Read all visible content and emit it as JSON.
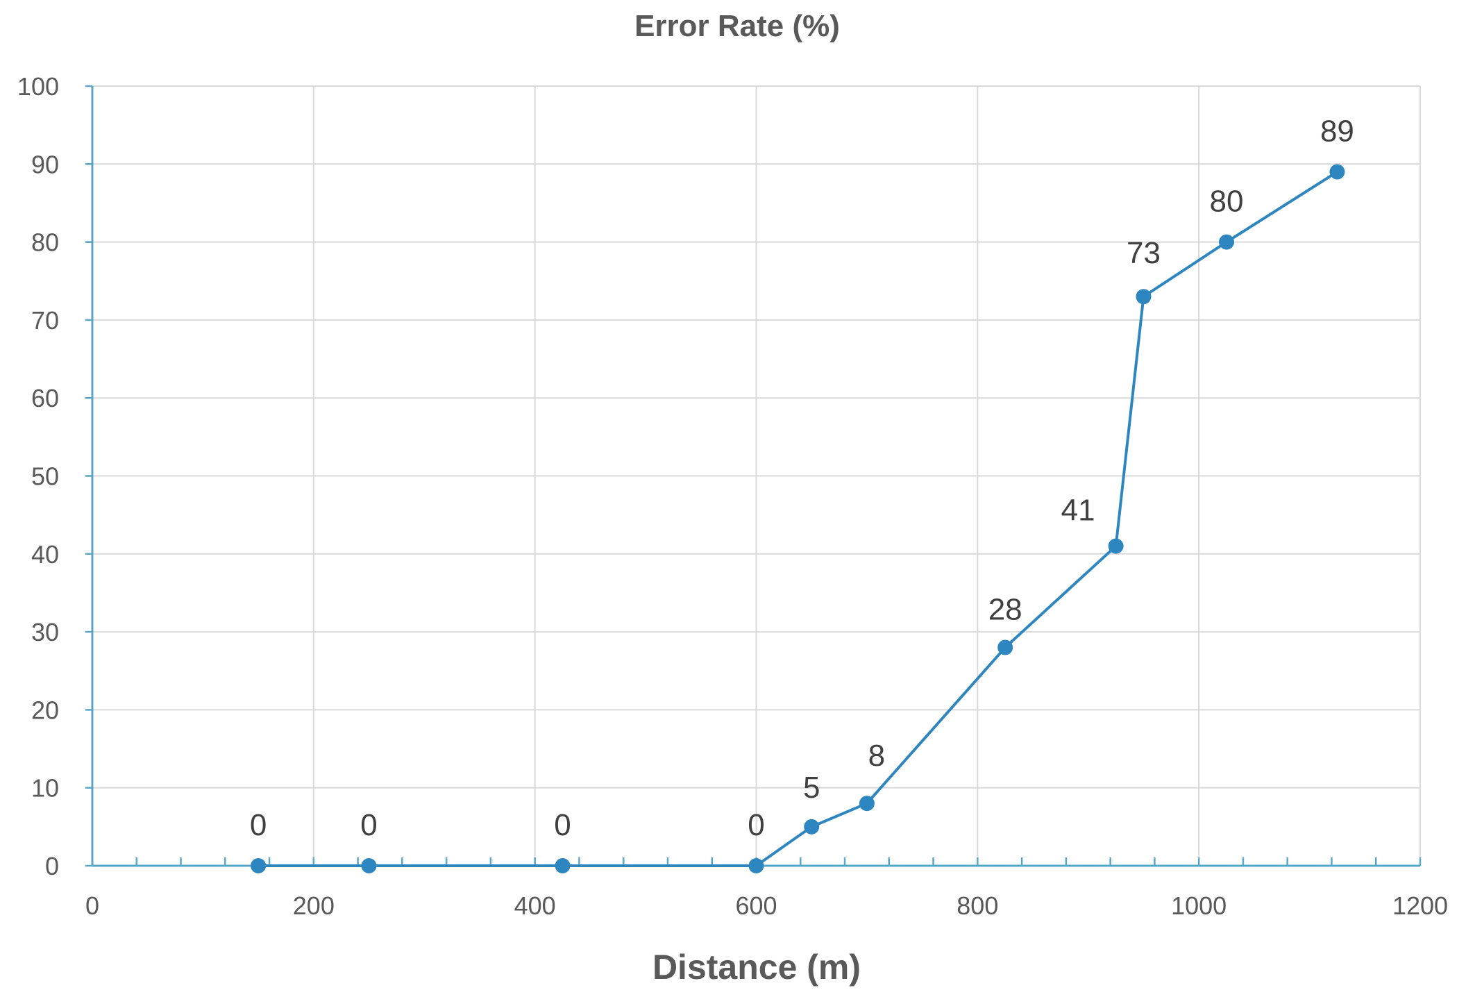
{
  "chart_data": {
    "type": "scatter",
    "mode": "lines+markers",
    "title": "Error Rate (%)",
    "xlabel": "Distance (m)",
    "ylabel": "",
    "xlim": [
      0,
      1200
    ],
    "ylim": [
      0,
      100
    ],
    "x_ticks": [
      0,
      200,
      400,
      600,
      800,
      1000,
      1200
    ],
    "y_ticks": [
      0,
      10,
      20,
      30,
      40,
      50,
      60,
      70,
      80,
      90,
      100
    ],
    "x_minor_step": 40,
    "grid": true,
    "legend": "none",
    "series": [
      {
        "color": "#2e86c1",
        "points": [
          {
            "x": 150,
            "y": 0,
            "label": "0"
          },
          {
            "x": 250,
            "y": 0,
            "label": "0"
          },
          {
            "x": 425,
            "y": 0,
            "label": "0"
          },
          {
            "x": 600,
            "y": 0,
            "label": "0"
          },
          {
            "x": 650,
            "y": 5,
            "label": "5"
          },
          {
            "x": 700,
            "y": 8,
            "label": "8"
          },
          {
            "x": 825,
            "y": 28,
            "label": "28"
          },
          {
            "x": 925,
            "y": 41,
            "label": "41"
          },
          {
            "x": 950,
            "y": 73,
            "label": "73"
          },
          {
            "x": 1025,
            "y": 80,
            "label": "80"
          },
          {
            "x": 1125,
            "y": 89,
            "label": "89"
          }
        ]
      }
    ]
  }
}
